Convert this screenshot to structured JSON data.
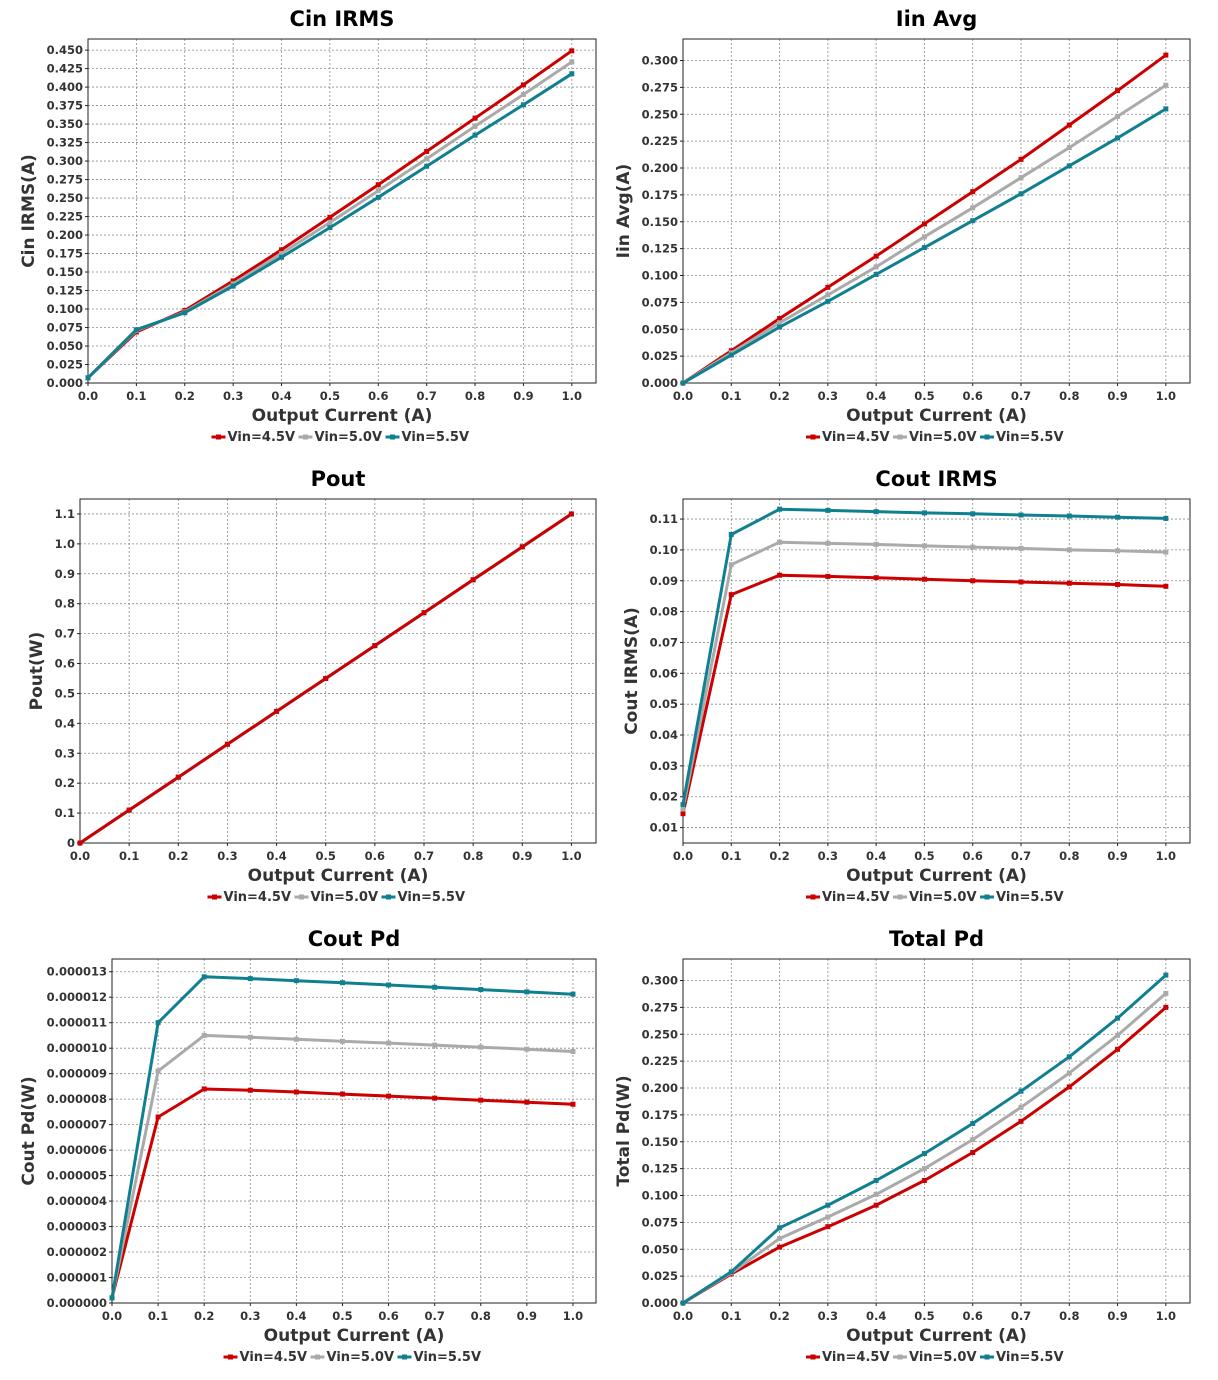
{
  "chart_data": [
    {
      "type": "line",
      "title": "Cin IRMS",
      "xlabel": "Output Current (A)",
      "ylabel": "Cin IRMS(A)",
      "x": [
        0.0,
        0.1,
        0.2,
        0.3,
        0.4,
        0.5,
        0.6,
        0.7,
        0.8,
        0.9,
        1.0
      ],
      "xticks": [
        "0.0",
        "0.1",
        "0.2",
        "0.3",
        "0.4",
        "0.5",
        "0.6",
        "0.7",
        "0.8",
        "0.9",
        "1.0"
      ],
      "xlim": [
        0,
        1.05
      ],
      "ylim": [
        0,
        0.465
      ],
      "yticks": [
        "0.000",
        "0.025",
        "0.050",
        "0.075",
        "0.100",
        "0.125",
        "0.150",
        "0.175",
        "0.200",
        "0.225",
        "0.250",
        "0.275",
        "0.300",
        "0.325",
        "0.350",
        "0.375",
        "0.400",
        "0.425",
        "0.450"
      ],
      "series": [
        {
          "name": "Vin=4.5V",
          "color": "#cc0000",
          "values": [
            0.007,
            0.069,
            0.098,
            0.138,
            0.18,
            0.224,
            0.268,
            0.313,
            0.358,
            0.403,
            0.449
          ]
        },
        {
          "name": "Vin=5.0V",
          "color": "#aaaaaa",
          "values": [
            0.007,
            0.071,
            0.096,
            0.134,
            0.175,
            0.217,
            0.26,
            0.303,
            0.347,
            0.39,
            0.434
          ]
        },
        {
          "name": "Vin=5.5V",
          "color": "#108090",
          "values": [
            0.007,
            0.072,
            0.095,
            0.131,
            0.17,
            0.21,
            0.251,
            0.293,
            0.335,
            0.376,
            0.418
          ]
        }
      ]
    },
    {
      "type": "line",
      "title": "Iin Avg",
      "xlabel": "Output Current (A)",
      "ylabel": "Iin Avg(A)",
      "x": [
        0.0,
        0.1,
        0.2,
        0.3,
        0.4,
        0.5,
        0.6,
        0.7,
        0.8,
        0.9,
        1.0
      ],
      "xticks": [
        "0.0",
        "0.1",
        "0.2",
        "0.3",
        "0.4",
        "0.5",
        "0.6",
        "0.7",
        "0.8",
        "0.9",
        "1.0"
      ],
      "xlim": [
        0,
        1.05
      ],
      "ylim": [
        0,
        0.32
      ],
      "yticks": [
        "0.000",
        "0.025",
        "0.050",
        "0.075",
        "0.100",
        "0.125",
        "0.150",
        "0.175",
        "0.200",
        "0.225",
        "0.250",
        "0.275",
        "0.300"
      ],
      "series": [
        {
          "name": "Vin=4.5V",
          "color": "#cc0000",
          "values": [
            0.0,
            0.03,
            0.06,
            0.089,
            0.118,
            0.148,
            0.178,
            0.208,
            0.24,
            0.272,
            0.305
          ]
        },
        {
          "name": "Vin=5.0V",
          "color": "#aaaaaa",
          "values": [
            0.0,
            0.028,
            0.056,
            0.082,
            0.108,
            0.136,
            0.163,
            0.191,
            0.219,
            0.248,
            0.277
          ]
        },
        {
          "name": "Vin=5.5V",
          "color": "#108090",
          "values": [
            0.0,
            0.026,
            0.052,
            0.076,
            0.101,
            0.126,
            0.151,
            0.176,
            0.202,
            0.228,
            0.255
          ]
        }
      ]
    },
    {
      "type": "line",
      "title": "Pout",
      "xlabel": "Output Current (A)",
      "ylabel": "Pout(W)",
      "x": [
        0.0,
        0.1,
        0.2,
        0.3,
        0.4,
        0.5,
        0.6,
        0.7,
        0.8,
        0.9,
        1.0
      ],
      "xticks": [
        "0.0",
        "0.1",
        "0.2",
        "0.3",
        "0.4",
        "0.5",
        "0.6",
        "0.7",
        "0.8",
        "0.9",
        "1.0"
      ],
      "xlim": [
        0,
        1.05
      ],
      "ylim": [
        0,
        1.15
      ],
      "yticks": [
        "0",
        "0.1",
        "0.2",
        "0.3",
        "0.4",
        "0.5",
        "0.6",
        "0.7",
        "0.8",
        "0.9",
        "1.0",
        "1.1"
      ],
      "series": [
        {
          "name": "Vin=4.5V",
          "color": "#cc0000",
          "values": [
            0.0,
            0.11,
            0.22,
            0.33,
            0.44,
            0.55,
            0.66,
            0.77,
            0.88,
            0.99,
            1.1
          ]
        },
        {
          "name": "Vin=5.0V",
          "color": "#aaaaaa",
          "values": [
            0.0,
            0.11,
            0.22,
            0.33,
            0.44,
            0.55,
            0.66,
            0.77,
            0.88,
            0.99,
            1.1
          ]
        },
        {
          "name": "Vin=5.5V",
          "color": "#108090",
          "values": [
            0.0,
            0.11,
            0.22,
            0.33,
            0.44,
            0.55,
            0.66,
            0.77,
            0.88,
            0.99,
            1.1
          ]
        }
      ],
      "draw_order": [
        2,
        1,
        0
      ]
    },
    {
      "type": "line",
      "title": "Cout IRMS",
      "xlabel": "Output Current (A)",
      "ylabel": "Cout IRMS(A)",
      "x": [
        0.0,
        0.1,
        0.2,
        0.3,
        0.4,
        0.5,
        0.6,
        0.7,
        0.8,
        0.9,
        1.0
      ],
      "xticks": [
        "0.0",
        "0.1",
        "0.2",
        "0.3",
        "0.4",
        "0.5",
        "0.6",
        "0.7",
        "0.8",
        "0.9",
        "1.0"
      ],
      "xlim": [
        0,
        1.05
      ],
      "ylim": [
        0.005,
        0.1165
      ],
      "yticks": [
        "0.01",
        "0.02",
        "0.03",
        "0.04",
        "0.05",
        "0.06",
        "0.07",
        "0.08",
        "0.09",
        "0.10",
        "0.11"
      ],
      "series": [
        {
          "name": "Vin=4.5V",
          "color": "#cc0000",
          "values": [
            0.0145,
            0.0855,
            0.0918,
            0.0914,
            0.091,
            0.0905,
            0.09,
            0.0896,
            0.0892,
            0.0888,
            0.0882
          ]
        },
        {
          "name": "Vin=5.0V",
          "color": "#aaaaaa",
          "values": [
            0.016,
            0.0952,
            0.1025,
            0.1021,
            0.1018,
            0.1013,
            0.1009,
            0.1005,
            0.1,
            0.0997,
            0.0993
          ]
        },
        {
          "name": "Vin=5.5V",
          "color": "#108090",
          "values": [
            0.0175,
            0.105,
            0.1132,
            0.1128,
            0.1124,
            0.112,
            0.1117,
            0.1113,
            0.111,
            0.1106,
            0.1102
          ]
        }
      ]
    },
    {
      "type": "line",
      "title": "Cout Pd",
      "xlabel": "Output Current (A)",
      "ylabel": "Cout Pd(W)",
      "x": [
        0.0,
        0.1,
        0.2,
        0.3,
        0.4,
        0.5,
        0.6,
        0.7,
        0.8,
        0.9,
        1.0
      ],
      "xticks": [
        "0.0",
        "0.1",
        "0.2",
        "0.3",
        "0.4",
        "0.5",
        "0.6",
        "0.7",
        "0.8",
        "0.9",
        "1.0"
      ],
      "xlim": [
        0,
        1.05
      ],
      "ylim": [
        0,
        1.35e-05
      ],
      "yticks": [
        "0.000000",
        "0.000001",
        "0.000002",
        "0.000003",
        "0.000004",
        "0.000005",
        "0.000006",
        "0.000007",
        "0.000008",
        "0.000009",
        "0.000010",
        "0.000011",
        "0.000012",
        "0.000013"
      ],
      "series": [
        {
          "name": "Vin=4.5V",
          "color": "#cc0000",
          "values": [
            2e-07,
            7.3e-06,
            8.4e-06,
            8.35e-06,
            8.28e-06,
            8.2e-06,
            8.12e-06,
            8.04e-06,
            7.96e-06,
            7.88e-06,
            7.8e-06
          ]
        },
        {
          "name": "Vin=5.0V",
          "color": "#aaaaaa",
          "values": [
            2e-07,
            9.1e-06,
            1.05e-05,
            1.043e-05,
            1.035e-05,
            1.027e-05,
            1.02e-05,
            1.012e-05,
            1.004e-05,
            9.96e-06,
            9.87e-06
          ]
        },
        {
          "name": "Vin=5.5V",
          "color": "#108090",
          "values": [
            2e-07,
            1.1e-05,
            1.28e-05,
            1.273e-05,
            1.265e-05,
            1.257e-05,
            1.248e-05,
            1.239e-05,
            1.23e-05,
            1.221e-05,
            1.212e-05
          ]
        }
      ]
    },
    {
      "type": "line",
      "title": "Total Pd",
      "xlabel": "Output Current (A)",
      "ylabel": "Total Pd(W)",
      "x": [
        0.0,
        0.1,
        0.2,
        0.3,
        0.4,
        0.5,
        0.6,
        0.7,
        0.8,
        0.9,
        1.0
      ],
      "xticks": [
        "0.0",
        "0.1",
        "0.2",
        "0.3",
        "0.4",
        "0.5",
        "0.6",
        "0.7",
        "0.8",
        "0.9",
        "1.0"
      ],
      "xlim": [
        0,
        1.05
      ],
      "ylim": [
        0,
        0.32
      ],
      "yticks": [
        "0.000",
        "0.025",
        "0.050",
        "0.075",
        "0.100",
        "0.125",
        "0.150",
        "0.175",
        "0.200",
        "0.225",
        "0.250",
        "0.275",
        "0.300"
      ],
      "series": [
        {
          "name": "Vin=4.5V",
          "color": "#cc0000",
          "values": [
            0.0,
            0.027,
            0.052,
            0.071,
            0.091,
            0.114,
            0.14,
            0.169,
            0.201,
            0.236,
            0.275
          ]
        },
        {
          "name": "Vin=5.0V",
          "color": "#aaaaaa",
          "values": [
            0.0,
            0.028,
            0.06,
            0.08,
            0.101,
            0.125,
            0.152,
            0.182,
            0.214,
            0.249,
            0.288
          ]
        },
        {
          "name": "Vin=5.5V",
          "color": "#108090",
          "values": [
            0.0,
            0.029,
            0.07,
            0.091,
            0.114,
            0.139,
            0.167,
            0.197,
            0.229,
            0.265,
            0.305
          ]
        }
      ]
    }
  ]
}
